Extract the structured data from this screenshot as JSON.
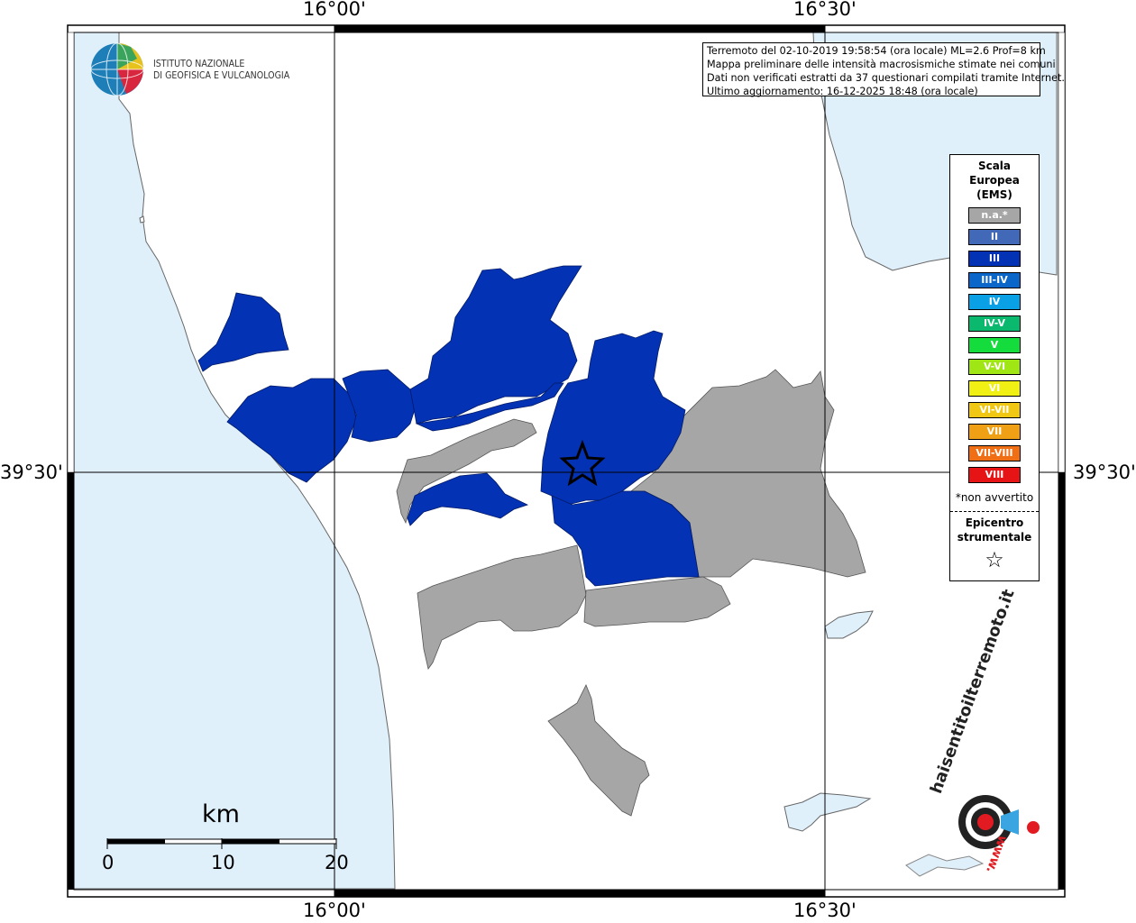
{
  "coordinates": {
    "top_left": "16°00'",
    "top_right": "16°30'",
    "bottom_left": "16°00'",
    "bottom_right": "16°30'",
    "left_lat": "39°30'",
    "right_lat": "39°30'"
  },
  "logo": {
    "name": "ingv-globe-logo",
    "line1": "ISTITUTO NAZIONALE",
    "line2": "DI GEOFISICA E VULCANOLOGIA"
  },
  "info": {
    "line1": "Terremoto del 02-10-2019 19:58:54 (ora locale) ML=2.6 Prof=8 km",
    "line2": "Mappa preliminare delle intensità macrosismiche stimate nei comuni",
    "line3": "Dati non verificati estratti da 37 questionari compilati tramite Internet.",
    "line4": "Ultimo aggiornamento: 16-12-2025 18:48 (ora locale)"
  },
  "legend": {
    "title1": "Scala",
    "title2": "Europea",
    "title3": "(EMS)",
    "items": [
      {
        "label": "n.a.*",
        "color": "#a6a6a6"
      },
      {
        "label": "II",
        "color": "#4169b8"
      },
      {
        "label": "III",
        "color": "#0432b4"
      },
      {
        "label": "III-IV",
        "color": "#0a66c8"
      },
      {
        "label": "IV",
        "color": "#0aa0e6"
      },
      {
        "label": "IV-V",
        "color": "#0ab96e"
      },
      {
        "label": "V",
        "color": "#14dc3c"
      },
      {
        "label": "V-VI",
        "color": "#a0e614"
      },
      {
        "label": "VI",
        "color": "#f0f014"
      },
      {
        "label": "VI-VII",
        "color": "#f0c814"
      },
      {
        "label": "VII",
        "color": "#f0a014"
      },
      {
        "label": "VII-VIII",
        "color": "#f06e14"
      },
      {
        "label": "VIII",
        "color": "#e61414"
      }
    ],
    "note": "*non avvertito",
    "epicenter_line1": "Epicentro",
    "epicenter_line2": "strumentale",
    "epicenter_icon": "star-outline-icon"
  },
  "scale_bar": {
    "unit": "km",
    "tick0": "0",
    "tick1": "10",
    "tick2": "20"
  },
  "watermark": {
    "text": "haisentitoilterremoto.it",
    "url": "www."
  },
  "colors": {
    "sea": "#dff0fb",
    "land": "#ffffff",
    "intensity_III": "#0432b4",
    "not_available": "#a6a6a6"
  }
}
